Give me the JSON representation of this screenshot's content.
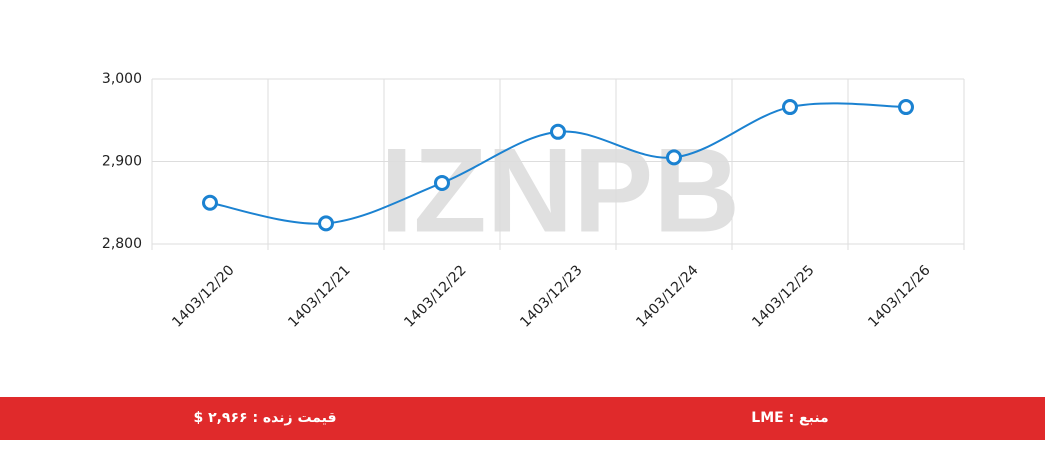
{
  "chart_data": {
    "type": "line",
    "categories": [
      "1403/12/20",
      "1403/12/21",
      "1403/12/22",
      "1403/12/23",
      "1403/12/24",
      "1403/12/25",
      "1403/12/26"
    ],
    "values": [
      2850,
      2825,
      2874,
      2936,
      2905,
      2966,
      2966
    ],
    "color": "#1b82d1",
    "ylim": [
      2800,
      3000
    ],
    "yticks": [
      {
        "value": 2800,
        "label": "2,800"
      },
      {
        "value": 2900,
        "label": "2,900"
      },
      {
        "value": 3000,
        "label": "3,000"
      }
    ],
    "grid": true,
    "watermark": "IZNPB"
  },
  "footer": {
    "live_price": "قیمت زنده : ۲,۹۶۶ $",
    "source": "منبع : LME"
  }
}
